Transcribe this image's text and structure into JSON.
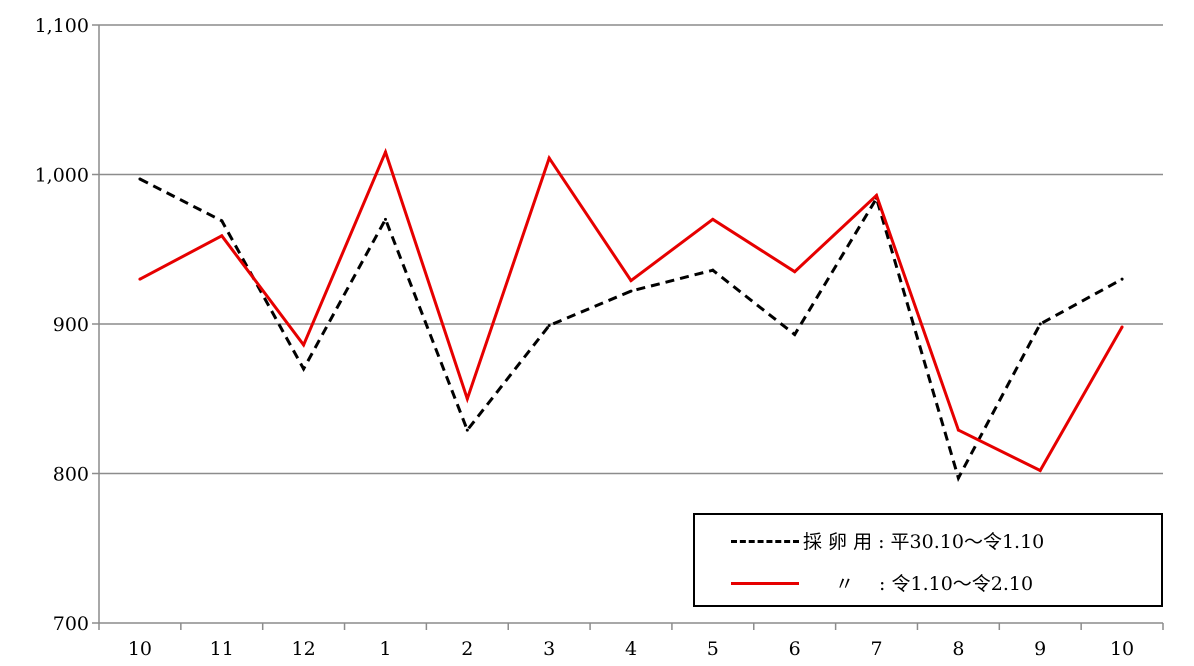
{
  "chart_data": {
    "type": "line",
    "categories": [
      "10",
      "11",
      "12",
      "1",
      "2",
      "3",
      "4",
      "5",
      "6",
      "7",
      "8",
      "9",
      "10"
    ],
    "ylim": [
      700,
      1100
    ],
    "yticks": [
      "700",
      "800",
      "900",
      "1,000",
      "1,100"
    ],
    "ytick_values": [
      700,
      800,
      900,
      1000,
      1100
    ],
    "grid": true,
    "legend_position": "bottom-right",
    "series": [
      {
        "name": "採 卵 用 : 平30.10～令1.10",
        "color": "#000000",
        "style": "dashed",
        "values": [
          997,
          969,
          870,
          970,
          829,
          899,
          922,
          936,
          893,
          984,
          797,
          900,
          930
        ]
      },
      {
        "name": "〃　 : 令1.10～令2.10",
        "color": "#e60000",
        "style": "solid",
        "values": [
          930,
          959,
          886,
          1015,
          850,
          1011,
          929,
          970,
          935,
          986,
          829,
          802,
          898
        ]
      }
    ]
  }
}
